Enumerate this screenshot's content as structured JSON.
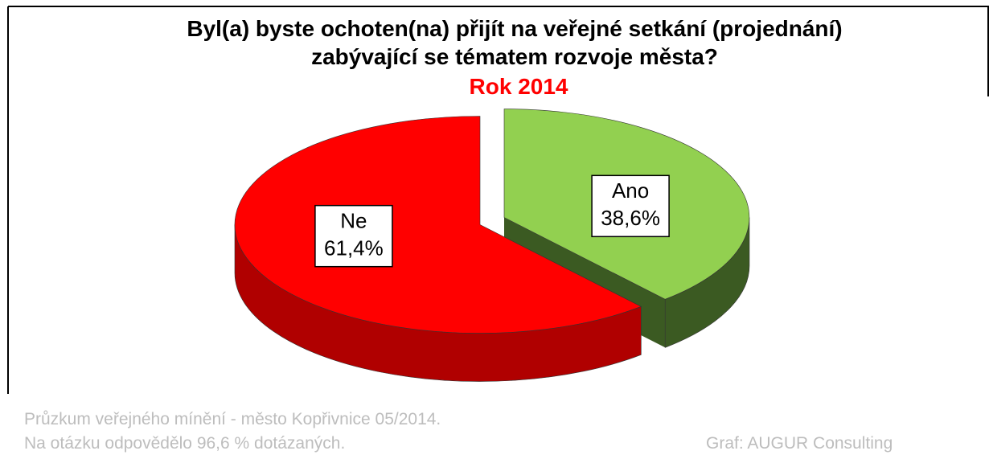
{
  "chart_data": {
    "type": "pie",
    "title": "Byl(a) byste ochoten(na) přijít na veřejné setkání (projednání) zabývající se tématem rozvoje města?",
    "subtitle": "Rok 2014",
    "categories": [
      "Ano",
      "Ne"
    ],
    "values": [
      38.6,
      61.4
    ],
    "value_labels": [
      "38,6%",
      "61,4%"
    ],
    "colors": [
      "#92d050",
      "#ff0000"
    ],
    "side_colors": [
      "#3b5a22",
      "#b00000"
    ],
    "notes": [
      "Průzkum veřejného mínění - město Kopřivnice  05/2014.",
      "Na otázku odpovědělo 96,6 % dotázaných.",
      "Graf: AUGUR Consulting"
    ]
  }
}
